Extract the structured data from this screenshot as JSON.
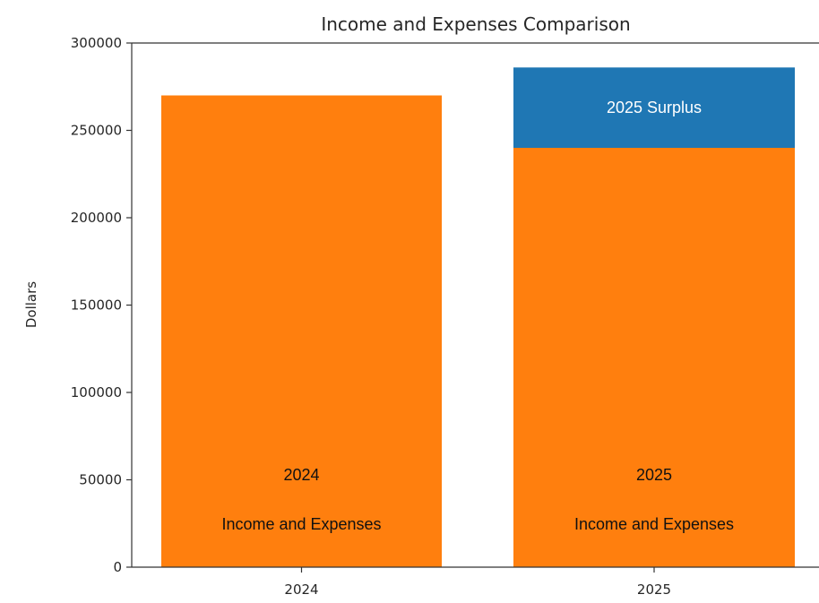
{
  "colors": {
    "expenses": "#ff7f0e",
    "surplus": "#1f77b4",
    "axis": "#333333"
  },
  "chart_data": {
    "type": "bar",
    "stacked": true,
    "title": "Income and Expenses Comparison",
    "xlabel": "",
    "ylabel": "Dollars",
    "ylim": [
      0,
      300000
    ],
    "yticks": [
      0,
      50000,
      100000,
      150000,
      200000,
      250000,
      300000
    ],
    "ytick_labels": [
      "0",
      "50000",
      "100000",
      "150000",
      "200000",
      "250000",
      "300000"
    ],
    "grid": false,
    "legend": "none",
    "categories": [
      "2024",
      "2025"
    ],
    "series": [
      {
        "values": [
          270000,
          240000
        ],
        "color": "#ff7f0e",
        "labels": [
          {
            "line1": "2024",
            "line2": "Income and Expenses"
          },
          {
            "line1": "2025",
            "line2": "Income and Expenses"
          }
        ]
      },
      {
        "values": [
          0,
          46000
        ],
        "color": "#1f77b4",
        "labels": [
          {
            "line1": "",
            "line2": ""
          },
          {
            "line1": "2025  Surplus",
            "line2": ""
          }
        ]
      }
    ]
  }
}
